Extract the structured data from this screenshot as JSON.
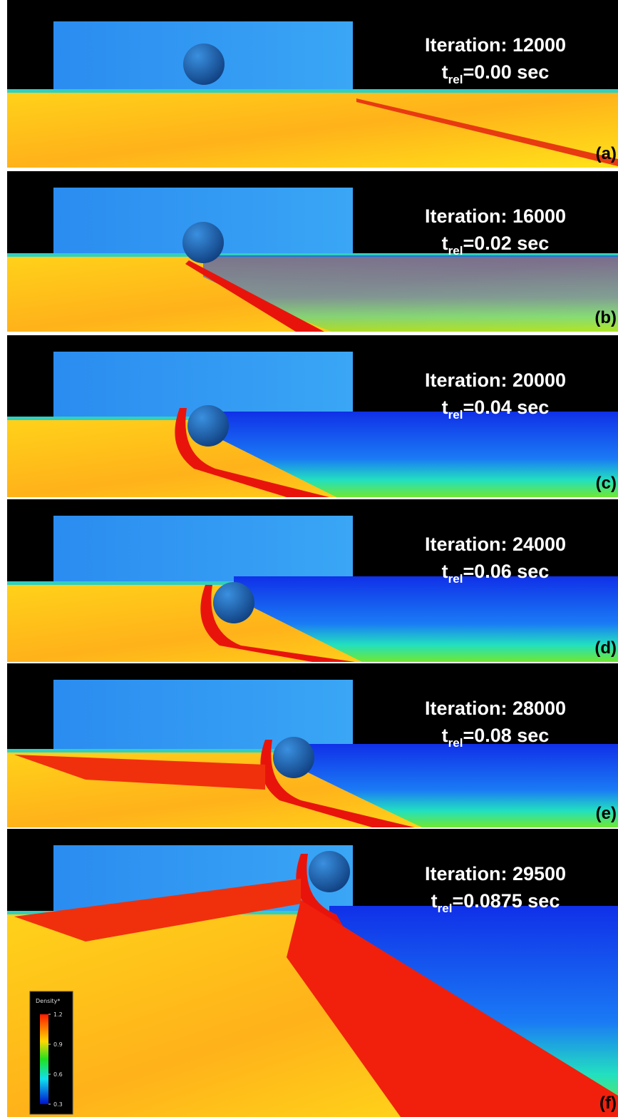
{
  "panels": [
    {
      "iteration": "Iteration: 12000",
      "time": {
        "symbol": "t",
        "subscript": "rel",
        "value": "=0.00 sec"
      },
      "label": "(a)"
    },
    {
      "iteration": "Iteration: 16000",
      "time": {
        "symbol": "t",
        "subscript": "rel",
        "value": "=0.02 sec"
      },
      "label": "(b)"
    },
    {
      "iteration": "Iteration: 20000",
      "time": {
        "symbol": "t",
        "subscript": "rel",
        "value": "=0.04 sec"
      },
      "label": "(c)"
    },
    {
      "iteration": "Iteration: 24000",
      "time": {
        "symbol": "t",
        "subscript": "rel",
        "value": "=0.06 sec"
      },
      "label": "(d)"
    },
    {
      "iteration": "Iteration: 28000",
      "time": {
        "symbol": "t",
        "subscript": "rel",
        "value": "=0.08 sec"
      },
      "label": "(e)"
    },
    {
      "iteration": "Iteration: 29500",
      "time": {
        "symbol": "t",
        "subscript": "rel",
        "value": "=0.0875 sec"
      },
      "label": "(f)"
    }
  ],
  "colorbar": {
    "title": "Density*",
    "ticks": [
      1.2,
      0.9,
      0.6,
      0.3
    ]
  }
}
